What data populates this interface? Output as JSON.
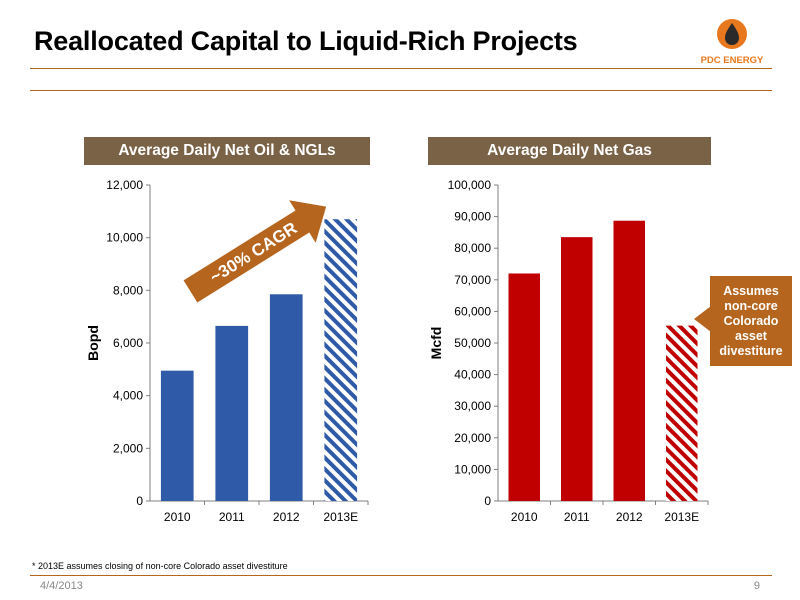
{
  "header": {
    "title": "Reallocated Capital to Liquid-Rich Projects"
  },
  "logo": {
    "text": "PDC ENERGY",
    "icon": "flame-drop-icon",
    "brand_color": "#e8781e"
  },
  "colors": {
    "accent": "#b5651d",
    "panel_header_bg": "#7a6247",
    "oil_bar": "#2e5aa8",
    "gas_bar": "#c00000"
  },
  "chart_data": [
    {
      "type": "bar",
      "title": "Average Daily Net Oil & NGLs",
      "ylabel": "Bopd",
      "xlabel": "",
      "categories": [
        "2010",
        "2011",
        "2012",
        "2013E"
      ],
      "values": [
        4950,
        6650,
        7850,
        10700
      ],
      "estimated": [
        false,
        false,
        false,
        true
      ],
      "ylim": [
        0,
        12000
      ],
      "yticks": [
        "0",
        "2,000",
        "4,000",
        "6,000",
        "8,000",
        "10,000",
        "12,000"
      ],
      "grid": false,
      "annotation": "~30% CAGR"
    },
    {
      "type": "bar",
      "title": "Average Daily Net Gas",
      "ylabel": "Mcfd",
      "xlabel": "",
      "categories": [
        "2010",
        "2011",
        "2012",
        "2013E"
      ],
      "values": [
        72000,
        83500,
        88700,
        55500
      ],
      "estimated": [
        false,
        false,
        false,
        true
      ],
      "ylim": [
        0,
        100000
      ],
      "yticks": [
        "0",
        "10,000",
        "20,000",
        "30,000",
        "40,000",
        "50,000",
        "60,000",
        "70,000",
        "80,000",
        "90,000",
        "100,000"
      ],
      "grid": false,
      "annotation": "Assumes non-core Colorado asset divestiture"
    }
  ],
  "footnote": "* 2013E assumes closing of non-core Colorado asset divestiture",
  "footer": {
    "date": "4/4/2013",
    "page": "9"
  }
}
